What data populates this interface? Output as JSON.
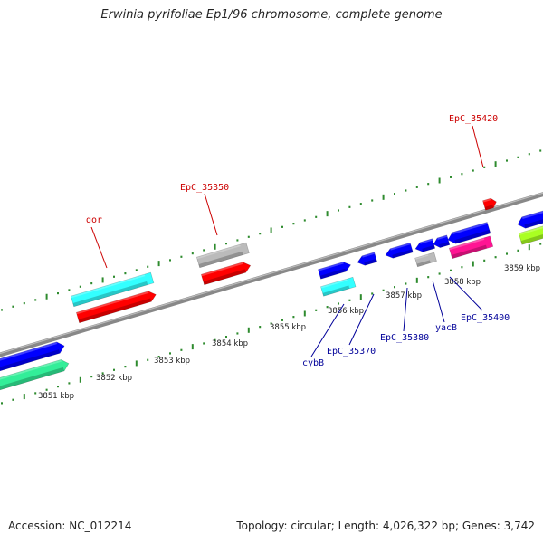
{
  "title": "Erwinia pyrifoliae Ep1/96 chromosome, complete genome",
  "footer": {
    "accession": "Accession: NC_012214",
    "summary": "Topology: circular; Length: 4,026,322 bp; Genes: 3,742"
  },
  "axis_labels": [
    "3851 kbp",
    "3852 kbp",
    "3853 kbp",
    "3854 kbp",
    "3855 kbp",
    "3856 kbp",
    "3857 kbp",
    "3858 kbp",
    "3859 kbp"
  ],
  "gene_labels_top": [
    "gor",
    "EpC_35350",
    "EpC_35420"
  ],
  "gene_labels_bottom": [
    "cybB",
    "EpC_35370",
    "EpC_35380",
    "yacB",
    "EpC_35400"
  ],
  "colors": {
    "backbone": "#888888",
    "tick_green": "#2e8b2e",
    "label_red": "#cc0000",
    "label_blue": "#000099",
    "gene_red": "#ff0000",
    "gene_blue": "#0000ff",
    "gene_cyan": "#33ffff",
    "gene_grey": "#bbbbbb",
    "gene_magenta": "#ff1493",
    "gene_mint": "#33ee99",
    "gene_lime": "#aaff22"
  }
}
